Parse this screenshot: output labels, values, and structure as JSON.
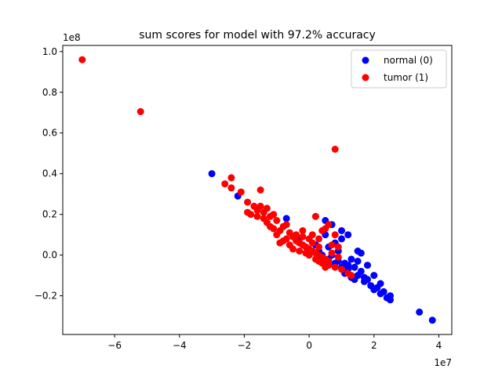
{
  "chart_data": {
    "type": "scatter",
    "title": "sum scores for model with 97.2% accuracy",
    "xlabel": "",
    "ylabel": "",
    "x_offset_label": "1e7",
    "y_offset_label": "1e8",
    "xlim": [
      -7.6,
      4.4
    ],
    "ylim": [
      -0.39,
      1.03
    ],
    "xticks": [
      -6,
      -4,
      -2,
      0,
      2,
      4
    ],
    "yticks": [
      -0.2,
      0.0,
      0.2,
      0.4,
      0.6,
      0.8,
      1.0
    ],
    "xtick_labels": [
      "−6",
      "−4",
      "−2",
      "0",
      "2",
      "4"
    ],
    "ytick_labels": [
      "−0.2",
      "0.0",
      "0.2",
      "0.4",
      "0.6",
      "0.8",
      "1.0"
    ],
    "legend_position": "upper right",
    "grid": false,
    "series": [
      {
        "name": "normal (0)",
        "color": "#0000ff",
        "points": [
          [
            -3.0,
            0.4
          ],
          [
            -2.2,
            0.29
          ],
          [
            -0.7,
            0.18
          ],
          [
            0.5,
            0.17
          ],
          [
            0.7,
            0.15
          ],
          [
            1.0,
            0.12
          ],
          [
            1.2,
            0.1
          ],
          [
            1.0,
            0.08
          ],
          [
            0.8,
            0.06
          ],
          [
            1.5,
            0.02
          ],
          [
            1.6,
            0.01
          ],
          [
            1.5,
            -0.03
          ],
          [
            1.8,
            -0.05
          ],
          [
            1.2,
            -0.05
          ],
          [
            1.6,
            -0.08
          ],
          [
            2.0,
            -0.1
          ],
          [
            2.2,
            -0.14
          ],
          [
            2.3,
            -0.18
          ],
          [
            2.5,
            -0.2
          ],
          [
            2.4,
            -0.21
          ],
          [
            2.5,
            -0.22
          ],
          [
            3.4,
            -0.28
          ],
          [
            3.8,
            -0.32
          ],
          [
            0.8,
            -0.04
          ],
          [
            1.0,
            -0.06
          ],
          [
            1.1,
            -0.09
          ],
          [
            1.3,
            -0.11
          ],
          [
            1.4,
            -0.12
          ],
          [
            1.7,
            -0.13
          ],
          [
            1.9,
            -0.15
          ],
          [
            2.1,
            -0.16
          ],
          [
            0.6,
            -0.02
          ],
          [
            0.4,
            0.0
          ],
          [
            0.9,
            -0.03
          ],
          [
            1.2,
            -0.07
          ],
          [
            1.5,
            -0.1
          ],
          [
            1.8,
            -0.12
          ],
          [
            0.3,
            0.02
          ],
          [
            0.6,
            0.04
          ],
          [
            1.3,
            -0.02
          ],
          [
            -0.3,
            0.08
          ],
          [
            0.2,
            0.05
          ],
          [
            0.7,
            0.0
          ],
          [
            1.1,
            -0.04
          ],
          [
            2.0,
            -0.17
          ],
          [
            0.5,
            0.1
          ],
          [
            0.9,
            0.02
          ],
          [
            1.4,
            -0.06
          ],
          [
            1.7,
            -0.11
          ],
          [
            2.2,
            -0.19
          ]
        ]
      },
      {
        "name": "tumor (1)",
        "color": "#ff0000",
        "points": [
          [
            -7.0,
            0.96
          ],
          [
            -5.2,
            0.705
          ],
          [
            0.8,
            0.52
          ],
          [
            -2.6,
            0.35
          ],
          [
            -2.4,
            0.38
          ],
          [
            -2.4,
            0.33
          ],
          [
            -2.1,
            0.31
          ],
          [
            -1.5,
            0.32
          ],
          [
            -1.9,
            0.26
          ],
          [
            -1.7,
            0.24
          ],
          [
            -1.5,
            0.24
          ],
          [
            -1.3,
            0.23
          ],
          [
            -1.4,
            0.21
          ],
          [
            -1.8,
            0.2
          ],
          [
            -1.6,
            0.19
          ],
          [
            -1.2,
            0.19
          ],
          [
            -1.0,
            0.17
          ],
          [
            -1.3,
            0.16
          ],
          [
            -1.1,
            0.13
          ],
          [
            -0.9,
            0.12
          ],
          [
            -0.8,
            0.14
          ],
          [
            -0.6,
            0.11
          ],
          [
            -0.5,
            0.09
          ],
          [
            -0.7,
            0.08
          ],
          [
            -0.4,
            0.07
          ],
          [
            -0.3,
            0.06
          ],
          [
            -0.2,
            0.05
          ],
          [
            -0.1,
            0.04
          ],
          [
            0.0,
            0.03
          ],
          [
            0.1,
            0.02
          ],
          [
            0.2,
            0.01
          ],
          [
            0.3,
            0.0
          ],
          [
            0.4,
            -0.01
          ],
          [
            0.5,
            -0.02
          ],
          [
            0.6,
            -0.03
          ],
          [
            0.2,
            0.19
          ],
          [
            0.4,
            0.12
          ],
          [
            0.5,
            0.13
          ],
          [
            0.8,
            0.1
          ],
          [
            0.9,
            0.04
          ],
          [
            0.7,
            0.05
          ],
          [
            0.3,
            0.08
          ],
          [
            0.1,
            0.1
          ],
          [
            -0.2,
            0.12
          ],
          [
            -0.4,
            0.1
          ],
          [
            -1.0,
            0.1
          ],
          [
            -0.9,
            0.06
          ],
          [
            -0.6,
            0.05
          ],
          [
            -0.3,
            0.02
          ],
          [
            0.0,
            0.0
          ],
          [
            0.2,
            -0.02
          ],
          [
            0.4,
            -0.04
          ],
          [
            0.6,
            -0.05
          ],
          [
            0.8,
            -0.06
          ],
          [
            1.0,
            -0.07
          ],
          [
            1.2,
            -0.09
          ],
          [
            1.3,
            -0.1
          ],
          [
            0.5,
            -0.06
          ],
          [
            0.3,
            -0.03
          ],
          [
            -0.1,
            0.01
          ],
          [
            -0.5,
            0.03
          ],
          [
            -0.8,
            0.07
          ],
          [
            -1.2,
            0.14
          ],
          [
            -1.4,
            0.18
          ],
          [
            -1.6,
            0.22
          ],
          [
            -1.9,
            0.21
          ],
          [
            -1.1,
            0.2
          ],
          [
            -0.7,
            0.15
          ],
          [
            0.6,
            0.15
          ],
          [
            0.0,
            0.08
          ],
          [
            -0.2,
            0.09
          ],
          [
            0.1,
            0.06
          ],
          [
            0.3,
            0.04
          ],
          [
            0.7,
            0.01
          ],
          [
            0.9,
            -0.01
          ]
        ]
      }
    ]
  }
}
